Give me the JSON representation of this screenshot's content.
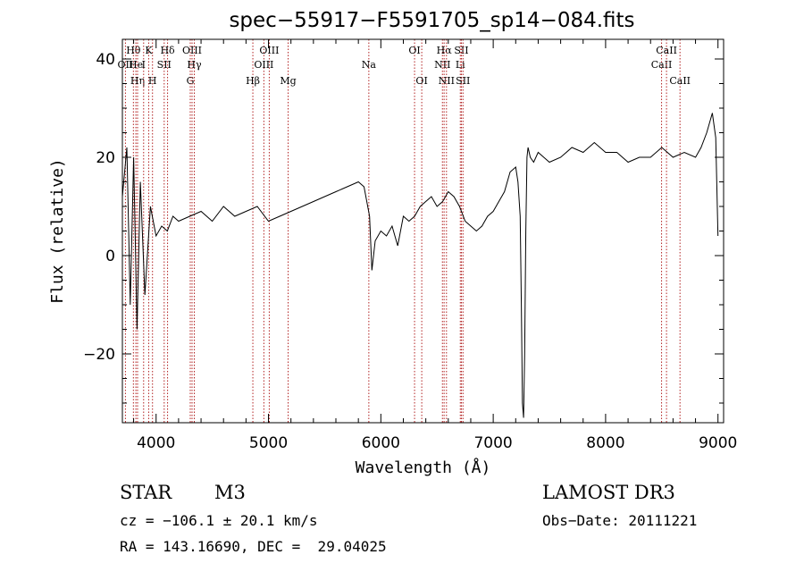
{
  "chart_data": {
    "type": "line",
    "title": "spec−55917−F5591705_sp14−084.fits",
    "xlabel": "Wavelength (Å)",
    "ylabel": "Flux (relative)",
    "xlim": [
      3700,
      9050
    ],
    "ylim": [
      -34,
      44
    ],
    "xticks": [
      4000,
      5000,
      6000,
      7000,
      8000,
      9000
    ],
    "yticks": [
      -20,
      0,
      20,
      40
    ],
    "ytick_labels": [
      "−20",
      "0",
      "20",
      "40"
    ],
    "series": [
      {
        "name": "spectrum",
        "x": [
          3700,
          3740,
          3770,
          3800,
          3830,
          3860,
          3900,
          3950,
          4000,
          4050,
          4100,
          4150,
          4200,
          4300,
          4400,
          4500,
          4600,
          4700,
          4800,
          4900,
          5000,
          5100,
          5200,
          5300,
          5400,
          5500,
          5600,
          5700,
          5800,
          5850,
          5900,
          5920,
          5950,
          6000,
          6050,
          6100,
          6150,
          6200,
          6250,
          6300,
          6350,
          6400,
          6450,
          6500,
          6550,
          6600,
          6650,
          6700,
          6750,
          6800,
          6850,
          6900,
          6950,
          7000,
          7050,
          7100,
          7150,
          7200,
          7220,
          7240,
          7250,
          7260,
          7270,
          7280,
          7290,
          7300,
          7310,
          7330,
          7360,
          7400,
          7450,
          7500,
          7600,
          7700,
          7800,
          7900,
          8000,
          8100,
          8200,
          8300,
          8400,
          8500,
          8600,
          8700,
          8800,
          8850,
          8900,
          8950,
          8980,
          9000
        ],
        "values": [
          12,
          22,
          -10,
          20,
          -15,
          15,
          -8,
          10,
          4,
          6,
          5,
          8,
          7,
          8,
          9,
          7,
          10,
          8,
          9,
          10,
          7,
          8,
          9,
          10,
          11,
          12,
          13,
          14,
          15,
          14,
          8,
          -3,
          3,
          5,
          4,
          6,
          2,
          8,
          7,
          8,
          10,
          11,
          12,
          10,
          11,
          13,
          12,
          10,
          7,
          6,
          5,
          6,
          8,
          9,
          11,
          13,
          17,
          18,
          15,
          8,
          -10,
          -30,
          -33,
          -20,
          5,
          20,
          22,
          20,
          19,
          21,
          20,
          19,
          20,
          22,
          21,
          23,
          21,
          21,
          19,
          20,
          20,
          22,
          20,
          21,
          20,
          22,
          25,
          29,
          24,
          4
        ]
      }
    ],
    "line_ids": [
      {
        "label": "OII",
        "x": 3727,
        "row": 1
      },
      {
        "label": "Hθ",
        "x": 3798,
        "row": 0
      },
      {
        "label": "He",
        "x": 3820,
        "row": 1
      },
      {
        "label": "Hη",
        "x": 3835,
        "row": 2
      },
      {
        "label": "I",
        "x": 3889,
        "row": 1
      },
      {
        "label": "K",
        "x": 3934,
        "row": 0
      },
      {
        "label": "H",
        "x": 3968,
        "row": 2
      },
      {
        "label": "SII",
        "x": 4072,
        "row": 1
      },
      {
        "label": "Hδ",
        "x": 4102,
        "row": 0
      },
      {
        "label": "G",
        "x": 4304,
        "row": 2
      },
      {
        "label": "OIII",
        "x": 4320,
        "row": 0
      },
      {
        "label": "Hγ",
        "x": 4340,
        "row": 1
      },
      {
        "label": "Hβ",
        "x": 4861,
        "row": 2
      },
      {
        "label": "OIII",
        "x": 4959,
        "row": 1
      },
      {
        "label": "OIII",
        "x": 5007,
        "row": 0
      },
      {
        "label": "Mg",
        "x": 5175,
        "row": 2
      },
      {
        "label": "Na",
        "x": 5893,
        "row": 1
      },
      {
        "label": "OI",
        "x": 6300,
        "row": 0
      },
      {
        "label": "OI",
        "x": 6364,
        "row": 2
      },
      {
        "label": "NII",
        "x": 6548,
        "row": 1
      },
      {
        "label": "Hα",
        "x": 6563,
        "row": 0
      },
      {
        "label": "NII",
        "x": 6584,
        "row": 2
      },
      {
        "label": "Li",
        "x": 6707,
        "row": 1
      },
      {
        "label": "SII",
        "x": 6717,
        "row": 0
      },
      {
        "label": "SII",
        "x": 6731,
        "row": 2
      },
      {
        "label": "CaII",
        "x": 8498,
        "row": 1
      },
      {
        "label": "CaII",
        "x": 8542,
        "row": 0
      },
      {
        "label": "CaII",
        "x": 8662,
        "row": 2
      }
    ],
    "colors": {
      "spectrum": "#000000",
      "line_ids": "#b22222",
      "axes": "#000000"
    }
  },
  "info": {
    "class": "STAR",
    "subclass": "M3",
    "survey": "LAMOST DR3",
    "cz": "cz = −106.1 ± 20.1 km/s",
    "obs_date": "Obs−Date: 20111221",
    "coords": "RA = 143.16690, DEC =  29.04025"
  }
}
